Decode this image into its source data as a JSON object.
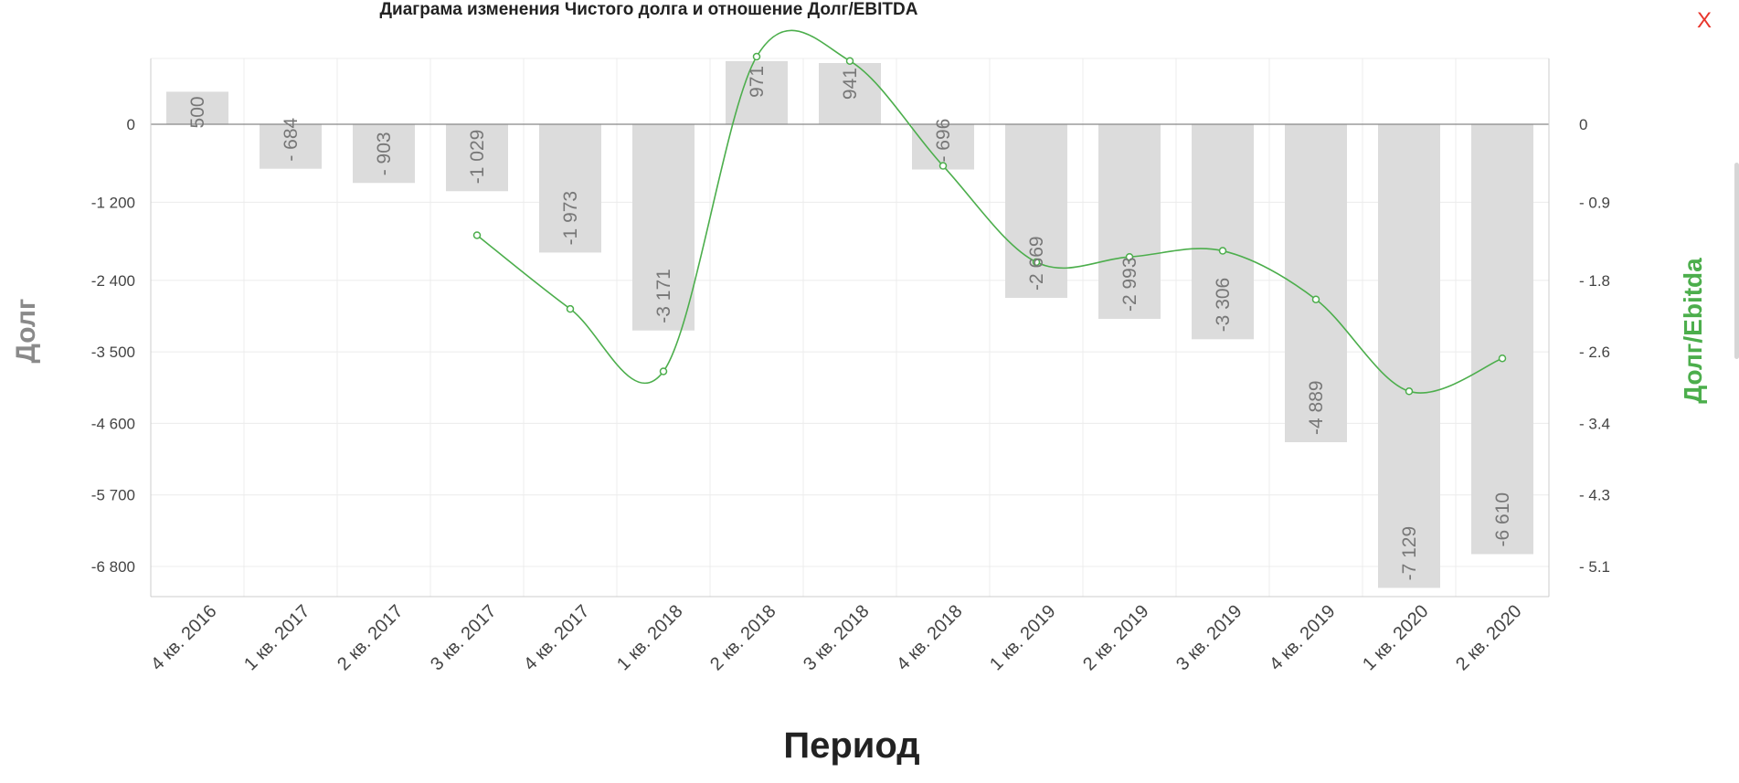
{
  "chart_data": {
    "type": "bar",
    "title": "Диаграма изменения Чистого долга и отношение Долг/EBITDA",
    "xlabel": "Период",
    "ylabel": "Долг",
    "y2label": "Долг/Ebitda",
    "categories": [
      "4 кв. 2016",
      "1 кв. 2017",
      "2 кв. 2017",
      "3 кв. 2017",
      "4 кв. 2017",
      "1 кв. 2018",
      "2 кв. 2018",
      "3 кв. 2018",
      "4 кв. 2018",
      "1 кв. 2019",
      "2 кв. 2019",
      "3 кв. 2019",
      "4 кв. 2019",
      "1 кв. 2020",
      "2 кв. 2020"
    ],
    "series": [
      {
        "name": "Долг",
        "type": "bar",
        "axis": "left",
        "values": [
          500,
          -684,
          -903,
          -1029,
          -1973,
          -3171,
          971,
          941,
          -696,
          -2669,
          -2993,
          -3306,
          -4889,
          -7129,
          -6610
        ],
        "labels": [
          "500",
          "- 684",
          "- 903",
          "-1 029",
          "-1 973",
          "-3 171",
          "971",
          "941",
          "- 696",
          "-2 669",
          "-2 993",
          "-3 306",
          "-4 889",
          "-7 129",
          "-6 610"
        ],
        "color": "#dcdcdc"
      },
      {
        "name": "Долг/Ebitda",
        "type": "line",
        "axis": "right",
        "values": [
          null,
          null,
          null,
          -1.28,
          -2.13,
          -2.85,
          0.78,
          0.73,
          -0.48,
          -1.59,
          -1.53,
          -1.46,
          -2.02,
          -3.08,
          -2.7
        ],
        "color": "#4cae4c"
      }
    ],
    "yticks_left": [
      0,
      -1200,
      -2400,
      -3500,
      -4600,
      -5700,
      -6800
    ],
    "yticks_left_labels": [
      "0",
      "-1 200",
      "-2 400",
      "-3 500",
      "-4 600",
      "-5 700",
      "-6 800"
    ],
    "yticks_right_labels": [
      "0",
      "- 0.9",
      "- 1.8",
      "- 2.6",
      "- 3.4",
      "- 4.3",
      "- 5.1"
    ],
    "grid": true,
    "colors": {
      "line": "#4cae4c",
      "bars": "#dcdcdc",
      "y2label": "#4cae4c",
      "close": "#e8352c"
    }
  },
  "close_label": "X"
}
